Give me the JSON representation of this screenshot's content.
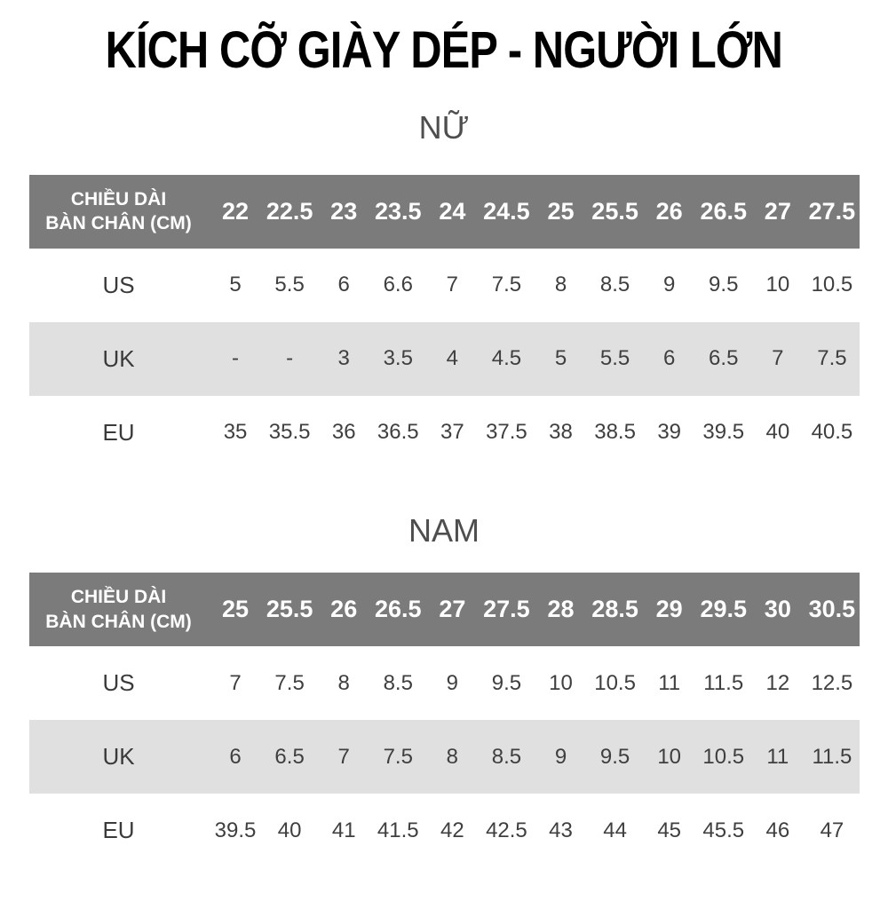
{
  "title": "KÍCH CỠ GIÀY DÉP - NGƯỜI LỚN",
  "colors": {
    "header_bg": "#7b7b7b",
    "alt_row_bg": "#e0e0e0",
    "title_color": "#000000",
    "section_title_color": "#4e4e4e",
    "body_text_color": "#3f3f3f"
  },
  "chart_data": [
    {
      "type": "table",
      "section_title": "NỮ",
      "corner_header": [
        "CHIỀU DÀI",
        "BÀN CHÂN (CM)"
      ],
      "columns": [
        "22",
        "22.5",
        "23",
        "23.5",
        "24",
        "24.5",
        "25",
        "25.5",
        "26",
        "26.5",
        "27",
        "27.5"
      ],
      "rows": [
        {
          "label": "US",
          "values": [
            "5",
            "5.5",
            "6",
            "6.6",
            "7",
            "7.5",
            "8",
            "8.5",
            "9",
            "9.5",
            "10",
            "10.5"
          ]
        },
        {
          "label": "UK",
          "values": [
            "-",
            "-",
            "3",
            "3.5",
            "4",
            "4.5",
            "5",
            "5.5",
            "6",
            "6.5",
            "7",
            "7.5"
          ]
        },
        {
          "label": "EU",
          "values": [
            "35",
            "35.5",
            "36",
            "36.5",
            "37",
            "37.5",
            "38",
            "38.5",
            "39",
            "39.5",
            "40",
            "40.5"
          ]
        }
      ]
    },
    {
      "type": "table",
      "section_title": "NAM",
      "corner_header": [
        "CHIỀU DÀI",
        "BÀN CHÂN (CM)"
      ],
      "columns": [
        "25",
        "25.5",
        "26",
        "26.5",
        "27",
        "27.5",
        "28",
        "28.5",
        "29",
        "29.5",
        "30",
        "30.5"
      ],
      "rows": [
        {
          "label": "US",
          "values": [
            "7",
            "7.5",
            "8",
            "8.5",
            "9",
            "9.5",
            "10",
            "10.5",
            "11",
            "11.5",
            "12",
            "12.5"
          ]
        },
        {
          "label": "UK",
          "values": [
            "6",
            "6.5",
            "7",
            "7.5",
            "8",
            "8.5",
            "9",
            "9.5",
            "10",
            "10.5",
            "11",
            "11.5"
          ]
        },
        {
          "label": "EU",
          "values": [
            "39.5",
            "40",
            "41",
            "41.5",
            "42",
            "42.5",
            "43",
            "44",
            "45",
            "45.5",
            "46",
            "47"
          ]
        }
      ]
    }
  ]
}
